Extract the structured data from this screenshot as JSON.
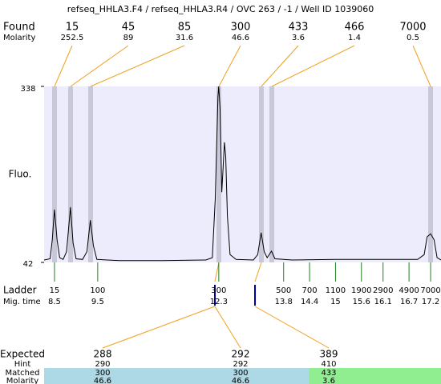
{
  "title": "refseq_HHLA3.F4 / refseq_HHLA3.R4 / OVC 263 / -1 / Well ID 1039060",
  "found": {
    "label": "Found",
    "molarity_label": "Molarity",
    "sizes": [
      15,
      45,
      85,
      300,
      433,
      466,
      7000
    ],
    "molarity": [
      252.5,
      89,
      31.6,
      46.6,
      3.6,
      1.4,
      0.5
    ]
  },
  "chart_data": {
    "type": "line",
    "y_label": "Fluo.",
    "color": "#000000",
    "x": [
      8.26,
      8.4,
      8.45,
      8.5,
      8.56,
      8.62,
      8.7,
      8.78,
      8.87,
      8.93,
      9.0,
      9.15,
      9.25,
      9.33,
      9.4,
      9.48,
      10,
      11,
      12.0,
      12.15,
      12.22,
      12.28,
      12.3,
      12.33,
      12.37,
      12.4,
      12.43,
      12.46,
      12.5,
      12.56,
      12.7,
      13.1,
      13.2,
      13.28,
      13.35,
      13.42,
      13.52,
      13.6,
      14,
      15,
      16,
      16.9,
      17.05,
      17.12,
      17.2,
      17.28,
      17.35,
      17.44
    ],
    "values": [
      46,
      48,
      80,
      131,
      80,
      50,
      47,
      60,
      135,
      75,
      48,
      47,
      60,
      113,
      70,
      47,
      45,
      45,
      46,
      50,
      150,
      320,
      338,
      300,
      160,
      200,
      244,
      220,
      120,
      55,
      47,
      46,
      55,
      92,
      60,
      50,
      61,
      48,
      46,
      47,
      47,
      47,
      55,
      85,
      90,
      80,
      50,
      46
    ],
    "xlim": [
      8.26,
      17.44
    ],
    "ylim": [
      42,
      338
    ],
    "yticks": [
      42,
      338
    ]
  },
  "ladder": {
    "label": "Ladder",
    "mig_label": "Mig. time",
    "sizes": [
      15,
      100,
      300,
      500,
      700,
      1100,
      1900,
      2900,
      4900,
      7000
    ],
    "mig_times": [
      8.5,
      9.5,
      12.3,
      13.8,
      14.4,
      15,
      15.6,
      16.1,
      16.7,
      17.2
    ]
  },
  "expected": {
    "labels": {
      "expected": "Expected",
      "hint": "Hint",
      "matched": "Matched",
      "molarity": "Molarity"
    },
    "rows": [
      {
        "expected": 288,
        "hint": 290,
        "matched": 300,
        "molarity": 46.6
      },
      {
        "expected": 292,
        "hint": 292,
        "matched": 300,
        "molarity": 46.6
      },
      {
        "expected": 389,
        "hint": 410,
        "matched": 433,
        "molarity": 3.6
      }
    ]
  }
}
